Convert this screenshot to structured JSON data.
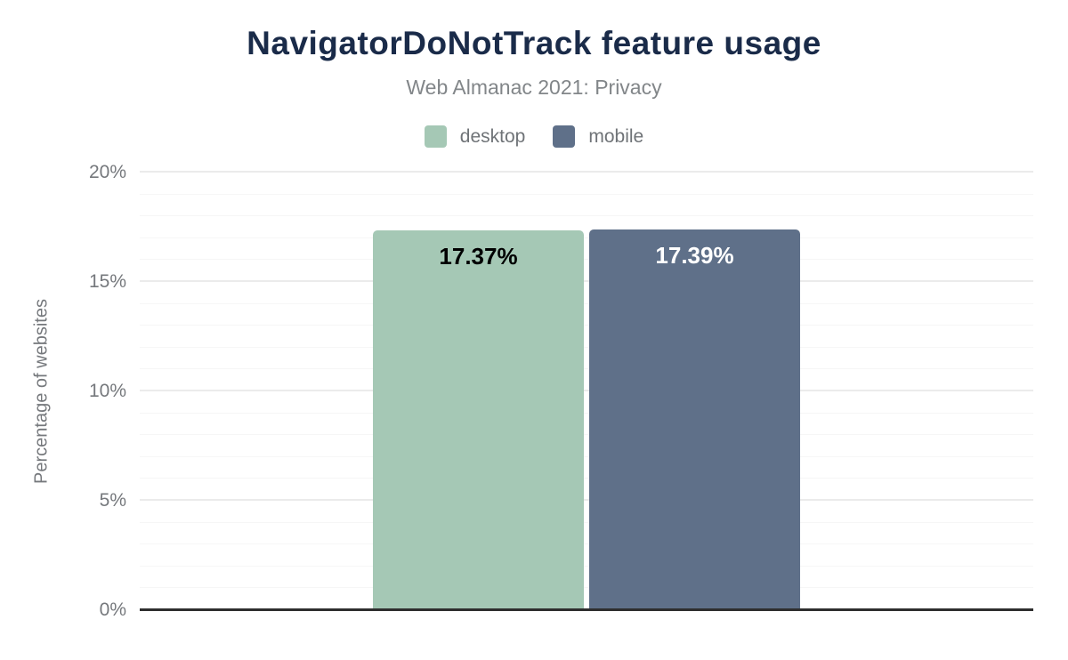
{
  "chart_data": {
    "type": "bar",
    "title": "NavigatorDoNotTrack feature usage",
    "subtitle": "Web Almanac 2021: Privacy",
    "ylabel": "Percentage of websites",
    "xlabel": "",
    "ylim": [
      0,
      20
    ],
    "grid": "on",
    "minor_grid_step": 1,
    "major_grid_step": 5,
    "legend_position": "top",
    "yticks": [
      {
        "value": 0,
        "label": "0%"
      },
      {
        "value": 5,
        "label": "5%"
      },
      {
        "value": 10,
        "label": "10%"
      },
      {
        "value": 15,
        "label": "15%"
      },
      {
        "value": 20,
        "label": "20%"
      }
    ],
    "categories": [
      "NavigatorDoNotTrack"
    ],
    "series": [
      {
        "name": "desktop",
        "values": [
          17.37
        ],
        "data_label": "17.37%",
        "color": "#a5c8b5",
        "data_label_color": "#000000"
      },
      {
        "name": "mobile",
        "values": [
          17.39
        ],
        "data_label": "17.39%",
        "color": "#5f7089",
        "data_label_color": "#ffffff"
      }
    ]
  },
  "style_colors": {
    "title": "#1a2b49",
    "subtitle": "#828689",
    "axis_text": "#75787c",
    "axis_line": "#2e2e2e",
    "minor_grid": "#f6f6f6",
    "major_grid": "#ebebeb",
    "background": "#ffffff"
  }
}
